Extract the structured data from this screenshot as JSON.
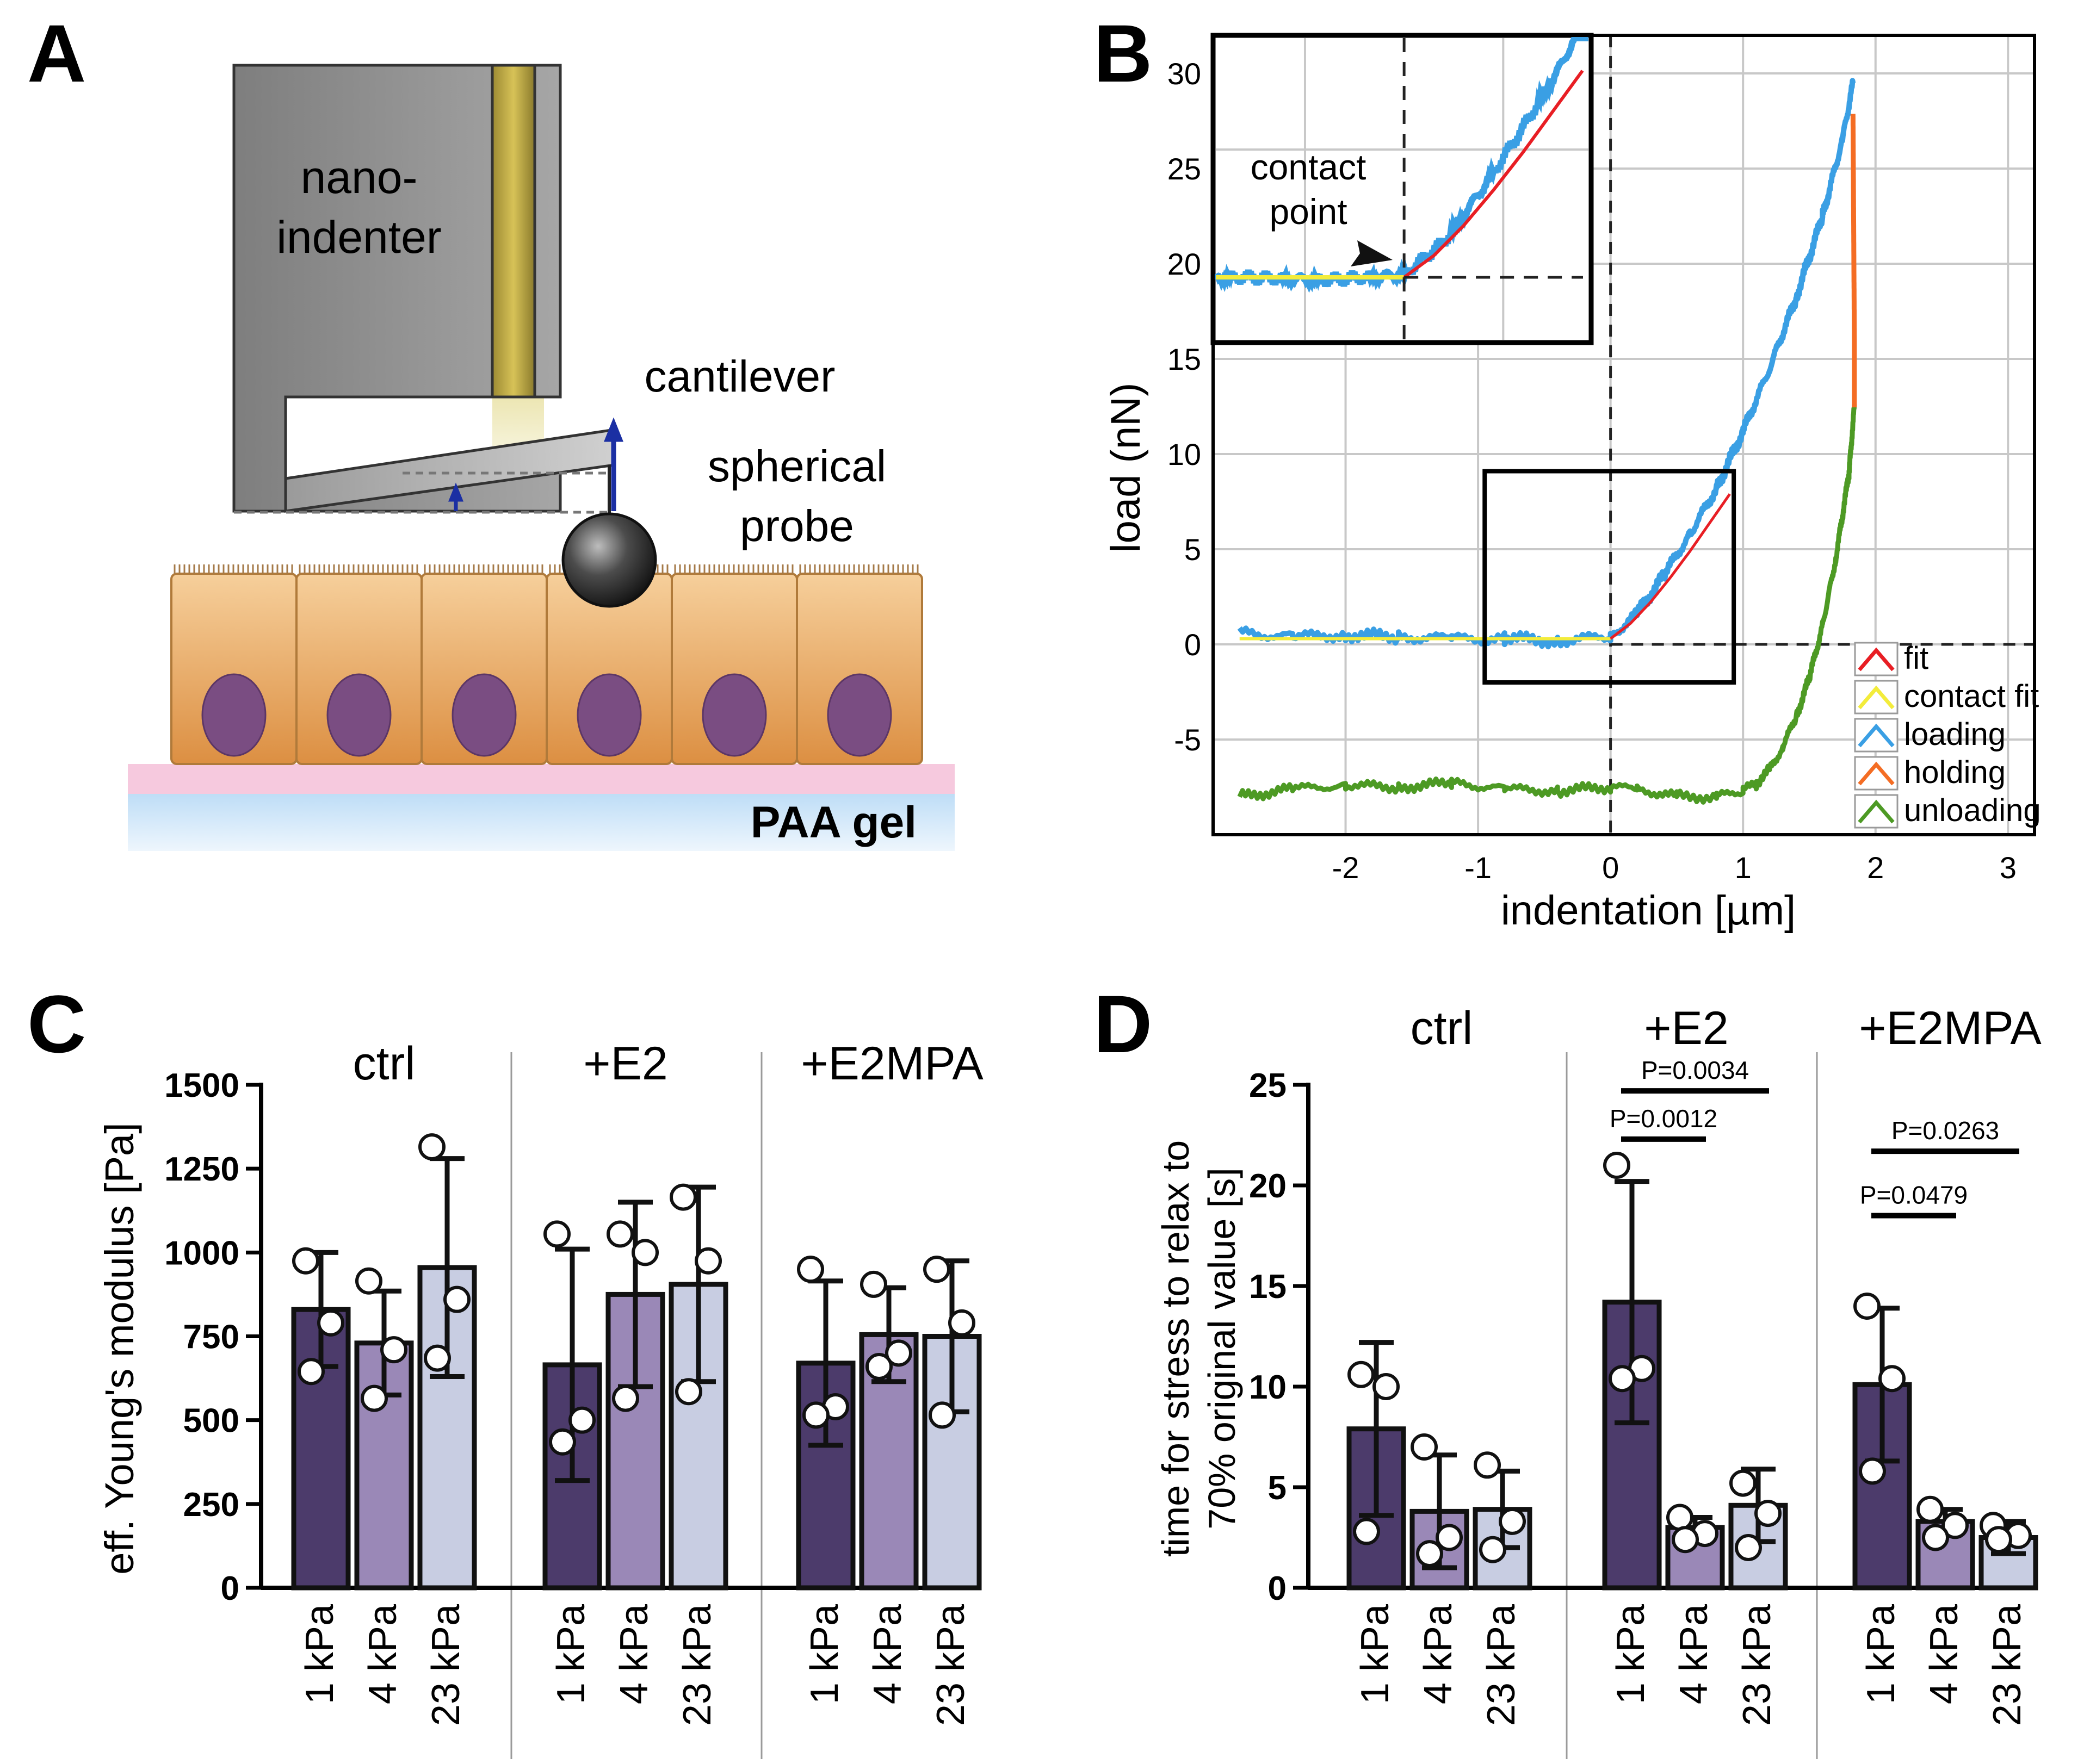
{
  "colors": {
    "dark": "#4c3b6b",
    "mid": "#9a88b7",
    "light": "#c8cde2",
    "loading": "#3a9fe4",
    "fit": "#e81e24",
    "contact": "#f3ec3b",
    "holding": "#f46d24",
    "unloading": "#4d9a24"
  },
  "panels": {
    "a": "A",
    "b": "B",
    "c": "C",
    "d": "D"
  },
  "schematic": {
    "nanoindenter_line1": "nano-",
    "nanoindenter_line2": "indenter",
    "cantilever": "cantilever",
    "probe_line1": "spherical",
    "probe_line2": "probe",
    "gel": "PAA gel"
  },
  "chart_data": [
    {
      "id": "B",
      "type": "line",
      "xlabel": "indentation [µm]",
      "ylabel": "load (nN)",
      "xlim": [
        -3,
        3.2
      ],
      "ylim": [
        -10,
        32
      ],
      "xticks": [
        -2,
        -1,
        0,
        1,
        2,
        3
      ],
      "yticks": [
        30,
        25,
        20,
        15,
        10,
        5,
        0,
        -5
      ],
      "grid": true,
      "legend_position": "bottom-right",
      "legend": [
        "fit",
        "contact fit",
        "loading",
        "holding",
        "unloading"
      ],
      "inset_annotation": [
        "contact",
        "point"
      ],
      "series": [
        {
          "name": "loading",
          "x": [
            -2.8,
            -2.4,
            -2.0,
            -1.6,
            -1.2,
            -0.8,
            -0.4,
            0,
            0.2,
            0.4,
            0.6,
            0.8,
            1.0,
            1.2,
            1.4,
            1.6,
            1.75,
            1.83
          ],
          "y": [
            0.6,
            0.4,
            0.5,
            0.4,
            0.3,
            0.3,
            0.2,
            0.4,
            1.6,
            3.6,
            5.8,
            8.2,
            11.2,
            14.5,
            18.2,
            22.5,
            26.5,
            29.5
          ]
        },
        {
          "name": "fit",
          "x": [
            0,
            0.15,
            0.3,
            0.45,
            0.6,
            0.75,
            0.9
          ],
          "y": [
            0.3,
            1.1,
            2.2,
            3.5,
            4.9,
            6.4,
            7.9
          ]
        },
        {
          "name": "contact fit",
          "x": [
            -2.8,
            -1.4,
            0
          ],
          "y": [
            0.3,
            0.3,
            0.3
          ]
        },
        {
          "name": "holding",
          "x": [
            1.83,
            1.835,
            1.84,
            1.84
          ],
          "y": [
            27.8,
            22.0,
            16.0,
            12.5
          ]
        },
        {
          "name": "unloading",
          "x": [
            1.84,
            1.8,
            1.7,
            1.6,
            1.5,
            1.4,
            1.3,
            1.2,
            1.1,
            1.0,
            0.8,
            0.5,
            0.2,
            0,
            -0.4,
            -0.8,
            -1.2,
            -1.6,
            -2.0,
            -2.4,
            -2.8
          ],
          "y": [
            12.5,
            9.0,
            4.5,
            1.0,
            -1.8,
            -3.8,
            -5.4,
            -6.6,
            -7.3,
            -7.7,
            -8.0,
            -8.0,
            -7.6,
            -7.5,
            -7.7,
            -7.6,
            -7.3,
            -7.5,
            -7.4,
            -7.6,
            -8.0
          ]
        }
      ]
    },
    {
      "id": "C",
      "type": "bar",
      "ylabel": "eff. Young's modulus [Pa]",
      "ylim": [
        0,
        1500
      ],
      "yticks": [
        0,
        250,
        500,
        750,
        1000,
        1250,
        1500
      ],
      "groups": [
        "ctrl",
        "+E2",
        "+E2MPA"
      ],
      "categories": [
        "1 kPa",
        "4 kPa",
        "23 kPa"
      ],
      "bars": [
        {
          "mean": 830,
          "sd": 170,
          "points": [
            975,
            790,
            645
          ]
        },
        {
          "mean": 730,
          "sd": 155,
          "points": [
            915,
            710,
            565
          ]
        },
        {
          "mean": 955,
          "sd": 325,
          "points": [
            1315,
            860,
            685
          ]
        },
        {
          "mean": 665,
          "sd": 345,
          "points": [
            1055,
            500,
            435
          ]
        },
        {
          "mean": 875,
          "sd": 275,
          "points": [
            1055,
            1000,
            565
          ]
        },
        {
          "mean": 905,
          "sd": 290,
          "points": [
            1165,
            975,
            585
          ]
        },
        {
          "mean": 670,
          "sd": 245,
          "points": [
            950,
            540,
            515
          ]
        },
        {
          "mean": 755,
          "sd": 140,
          "points": [
            905,
            700,
            660
          ]
        },
        {
          "mean": 750,
          "sd": 225,
          "points": [
            950,
            790,
            515
          ]
        }
      ]
    },
    {
      "id": "D",
      "type": "bar",
      "ylabel_line1": "time for stress to relax to",
      "ylabel_line2": "70% original value [s]",
      "ylim": [
        0,
        25
      ],
      "yticks": [
        0,
        5,
        10,
        15,
        20,
        25
      ],
      "groups": [
        "ctrl",
        "+E2",
        "+E2MPA"
      ],
      "categories": [
        "1 kPa",
        "4 kPa",
        "23 kPa"
      ],
      "bars": [
        {
          "mean": 7.9,
          "sd": 4.3,
          "points": [
            10.6,
            10.0,
            2.8
          ]
        },
        {
          "mean": 3.8,
          "sd": 2.8,
          "points": [
            7.0,
            2.5,
            1.7
          ]
        },
        {
          "mean": 3.9,
          "sd": 1.9,
          "points": [
            6.1,
            3.3,
            1.9
          ]
        },
        {
          "mean": 14.2,
          "sd": 6.0,
          "points": [
            21.0,
            10.9,
            10.4
          ]
        },
        {
          "mean": 3.0,
          "sd": 0.5,
          "points": [
            3.5,
            2.7,
            2.4
          ]
        },
        {
          "mean": 4.1,
          "sd": 1.8,
          "points": [
            5.2,
            3.7,
            2.0
          ]
        },
        {
          "mean": 10.1,
          "sd": 3.8,
          "points": [
            14.0,
            10.4,
            5.8
          ]
        },
        {
          "mean": 3.3,
          "sd": 0.6,
          "points": [
            3.9,
            3.1,
            2.5
          ]
        },
        {
          "mean": 2.5,
          "sd": 0.8,
          "points": [
            3.1,
            2.6,
            2.4
          ]
        }
      ],
      "significance": [
        {
          "label": "P=0.0012",
          "from": 3,
          "to": 4,
          "y": 22.3
        },
        {
          "label": "P=0.0034",
          "from": 3,
          "to": 5,
          "y": 24.7
        },
        {
          "label": "P=0.0479",
          "from": 6,
          "to": 7,
          "y": 18.5
        },
        {
          "label": "P=0.0263",
          "from": 6,
          "to": 8,
          "y": 21.7
        }
      ]
    }
  ]
}
